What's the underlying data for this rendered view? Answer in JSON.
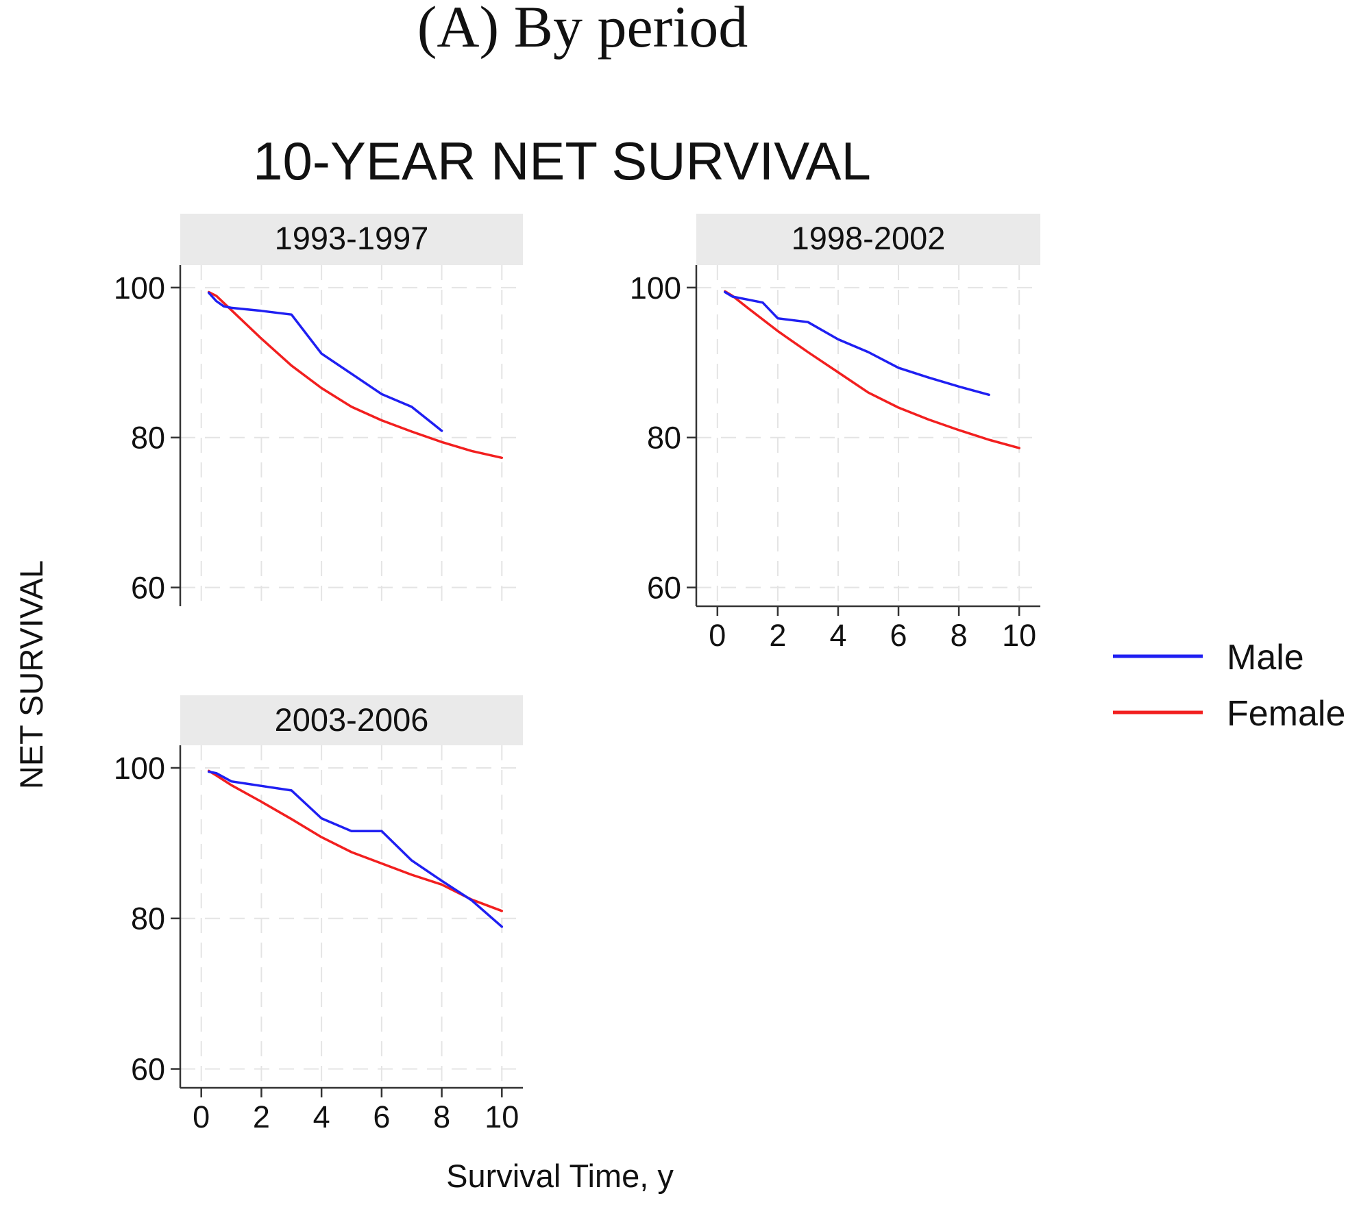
{
  "figure_caption": "(A) By period",
  "chart_data": {
    "type": "line",
    "title": "10-YEAR NET SURVIVAL",
    "ylabel": "NET SURVIVAL",
    "xlabel": "Survival Time, y",
    "xlim": [
      -0.7,
      10.7
    ],
    "ylim": [
      57.5,
      103
    ],
    "xticks": [
      0,
      2,
      4,
      6,
      8,
      10
    ],
    "yticks": [
      60,
      80,
      100
    ],
    "grid": true,
    "legend": {
      "position": "right",
      "entries": [
        "Male",
        "Female"
      ]
    },
    "colors": {
      "Male": "#1f1ff2",
      "Female": "#f21f1f"
    },
    "panels": [
      {
        "label": "1993-1997",
        "series": [
          {
            "name": "Male",
            "x": [
              0.25,
              0.5,
              0.75,
              1,
              2,
              3,
              4,
              5,
              6,
              7,
              8
            ],
            "y": [
              99.3,
              98.2,
              97.5,
              97.3,
              96.9,
              96.4,
              91.2,
              88.5,
              85.8,
              84.1,
              80.9
            ]
          },
          {
            "name": "Female",
            "x": [
              0.25,
              0.5,
              1,
              2,
              3,
              4,
              5,
              6,
              7,
              8,
              9,
              10
            ],
            "y": [
              99.4,
              98.9,
              97.0,
              93.2,
              89.6,
              86.6,
              84.1,
              82.3,
              80.8,
              79.4,
              78.2,
              77.3
            ]
          }
        ]
      },
      {
        "label": "1998-2002",
        "series": [
          {
            "name": "Male",
            "x": [
              0.25,
              0.5,
              1,
              1.5,
              2,
              3,
              4,
              5,
              6,
              7,
              8,
              9
            ],
            "y": [
              99.4,
              98.8,
              98.4,
              98.0,
              95.9,
              95.4,
              93.1,
              91.4,
              89.3,
              88.0,
              86.8,
              85.7
            ]
          },
          {
            "name": "Female",
            "x": [
              0.25,
              0.5,
              1,
              2,
              3,
              4,
              5,
              6,
              7,
              8,
              9,
              10
            ],
            "y": [
              99.5,
              98.9,
              97.3,
              94.2,
              91.4,
              88.7,
              86.0,
              84.0,
              82.4,
              81.0,
              79.7,
              78.6
            ]
          }
        ]
      },
      {
        "label": "2003-2006",
        "series": [
          {
            "name": "Male",
            "x": [
              0.25,
              0.5,
              1,
              2,
              3,
              4,
              5,
              6,
              7,
              8,
              9,
              10
            ],
            "y": [
              99.5,
              99.3,
              98.2,
              97.6,
              97.0,
              93.3,
              91.6,
              91.6,
              87.7,
              85.0,
              82.4,
              78.9
            ]
          },
          {
            "name": "Female",
            "x": [
              0.25,
              0.5,
              1,
              2,
              3,
              4,
              5,
              6,
              7,
              8,
              9,
              10
            ],
            "y": [
              99.6,
              99.0,
              97.7,
              95.5,
              93.2,
              90.8,
              88.8,
              87.3,
              85.8,
              84.5,
              82.5,
              81.0
            ]
          }
        ]
      }
    ]
  }
}
